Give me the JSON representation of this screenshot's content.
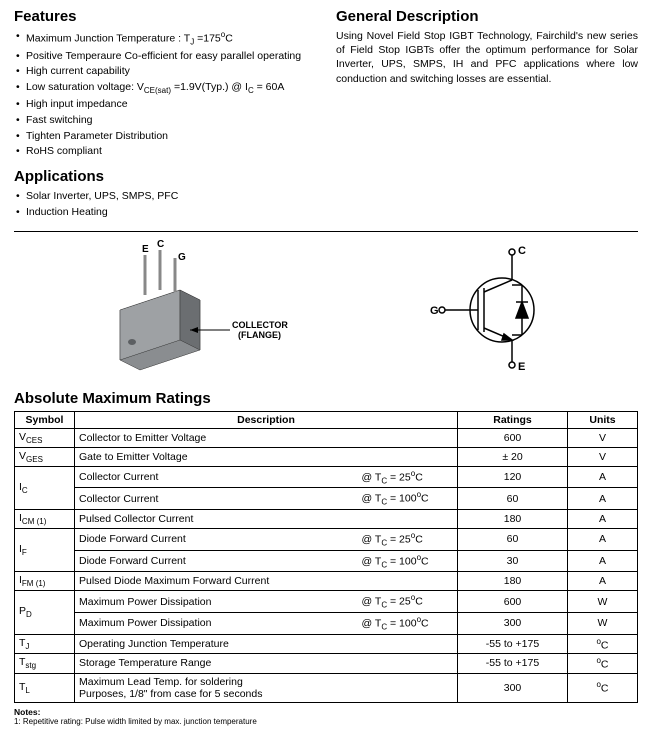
{
  "features": {
    "heading": "Features",
    "items": [
      "Maximum Junction Temperature : T_J =175°C",
      "Positive Temperaure Co-efficient for easy parallel operating",
      "High current capability",
      "Low saturation voltage: V_CE(sat) =1.9V(Typ.) @ I_C = 60A",
      "High input impedance",
      "Fast switching",
      "Tighten Parameter Distribution",
      "RoHS compliant"
    ]
  },
  "description": {
    "heading": "General Description",
    "text": "Using Novel Field Stop IGBT Technology, Fairchild's new series of Field Stop IGBTs offer the optimum performance for Solar Inverter, UPS, SMPS, IH and PFC applications where low conduction and switching losses are essential."
  },
  "applications": {
    "heading": "Applications",
    "items": [
      "Solar Inverter, UPS, SMPS, PFC",
      "Induction Heating"
    ]
  },
  "package": {
    "pins": {
      "e": "E",
      "c": "C",
      "g": "G"
    },
    "arrow_label": "COLLECTOR\n(FLANGE)"
  },
  "schematic": {
    "c": "C",
    "g": "G",
    "e": "E"
  },
  "amr": {
    "heading": "Absolute Maximum Ratings",
    "headers": {
      "symbol": "Symbol",
      "description": "Description",
      "ratings": "Ratings",
      "units": "Units"
    },
    "rows": [
      {
        "sym_html": "V<sub>CES</sub>",
        "desc": "Collector to Emitter Voltage",
        "cond": "",
        "rating": "600",
        "unit": "V",
        "rowspan": 1
      },
      {
        "sym_html": "V<sub>GES</sub>",
        "desc": "Gate to Emitter Voltage",
        "cond": "",
        "rating": "± 20",
        "unit": "V",
        "rowspan": 1
      },
      {
        "sym_html": "I<sub>C</sub>",
        "desc": "Collector Current",
        "cond": "@ T<sub>C</sub> = 25°C",
        "rating": "120",
        "unit": "A",
        "rowspan": 2
      },
      {
        "sym_html": "",
        "desc": "Collector Current",
        "cond": "@ T<sub>C</sub> = 100°C",
        "rating": "60",
        "unit": "A",
        "rowspan": 0
      },
      {
        "sym_html": "I<sub>CM (1)</sub>",
        "desc": "Pulsed Collector Current",
        "cond": "",
        "rating": "180",
        "unit": "A",
        "rowspan": 1
      },
      {
        "sym_html": "I<sub>F</sub>",
        "desc": "Diode Forward Current",
        "cond": "@ T<sub>C</sub> = 25°C",
        "rating": "60",
        "unit": "A",
        "rowspan": 2
      },
      {
        "sym_html": "",
        "desc": "Diode Forward Current",
        "cond": "@ T<sub>C</sub> = 100°C",
        "rating": "30",
        "unit": "A",
        "rowspan": 0
      },
      {
        "sym_html": "I<sub>FM (1)</sub>",
        "desc": "Pulsed Diode Maximum Forward Current",
        "cond": "",
        "rating": "180",
        "unit": "A",
        "rowspan": 1
      },
      {
        "sym_html": "P<sub>D</sub>",
        "desc": "Maximum Power Dissipation",
        "cond": "@ T<sub>C</sub> = 25°C",
        "rating": "600",
        "unit": "W",
        "rowspan": 2
      },
      {
        "sym_html": "",
        "desc": "Maximum Power Dissipation",
        "cond": "@ T<sub>C</sub> = 100°C",
        "rating": "300",
        "unit": "W",
        "rowspan": 0
      },
      {
        "sym_html": "T<sub>J</sub>",
        "desc": "Operating Junction Temperature",
        "cond": "",
        "rating": "-55 to +175",
        "unit": "°C",
        "rowspan": 1
      },
      {
        "sym_html": "T<sub>stg</sub>",
        "desc": "Storage Temperature Range",
        "cond": "",
        "rating": "-55 to +175",
        "unit": "°C",
        "rowspan": 1
      },
      {
        "sym_html": "T<sub>L</sub>",
        "desc": "Maximum Lead Temp. for soldering\nPurposes, 1/8\" from case for 5 seconds",
        "cond": "",
        "rating": "300",
        "unit": "°C",
        "rowspan": 1
      }
    ]
  },
  "notes": {
    "heading": "Notes:",
    "text": "1: Repetitive rating: Pulse width limited by max. junction temperature"
  },
  "colors": {
    "text": "#000000",
    "pkg_fill": "#8a8d90",
    "pkg_dark": "#5c5f62"
  }
}
